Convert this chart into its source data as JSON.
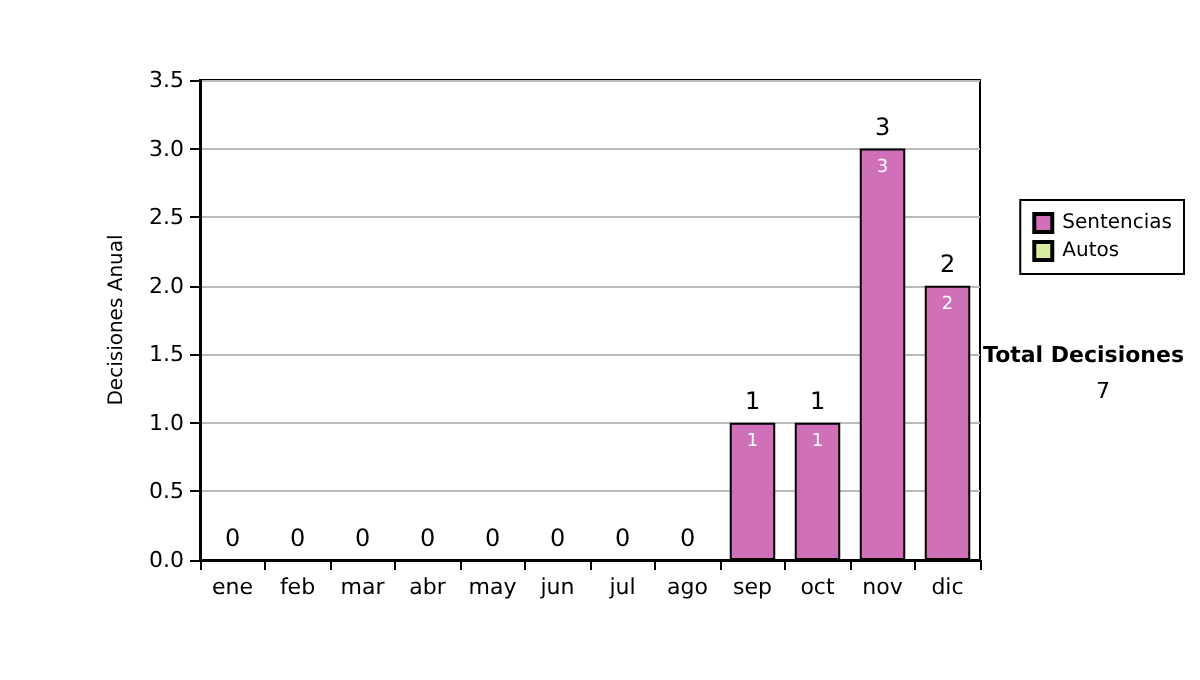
{
  "chart_data": {
    "type": "bar",
    "stacked": true,
    "ylabel": "Decisiones Anual",
    "categories": [
      "ene",
      "feb",
      "mar",
      "abr",
      "may",
      "jun",
      "jul",
      "ago",
      "sep",
      "oct",
      "nov",
      "dic"
    ],
    "series": [
      {
        "name": "Sentencias",
        "color": "#d070b8",
        "values": [
          0,
          0,
          0,
          0,
          0,
          0,
          0,
          0,
          1,
          1,
          3,
          2
        ],
        "value_labels": [
          null,
          null,
          null,
          null,
          null,
          null,
          null,
          null,
          "1",
          "1",
          "3",
          "2"
        ]
      },
      {
        "name": "Autos",
        "color": "#d8eca0",
        "values": [
          0,
          0,
          0,
          0,
          0,
          0,
          0,
          0,
          0,
          0,
          0,
          0
        ]
      }
    ],
    "totals": [
      "0",
      "0",
      "0",
      "0",
      "0",
      "0",
      "0",
      "0",
      "1",
      "1",
      "3",
      "2"
    ],
    "ylim": [
      0,
      3.5
    ],
    "yticks": [
      {
        "value": 0,
        "label": "0.0"
      },
      {
        "value": 0.5,
        "label": "0.5"
      },
      {
        "value": 1,
        "label": "1.0"
      },
      {
        "value": 1.5,
        "label": "1.5"
      },
      {
        "value": 2,
        "label": "2.0"
      },
      {
        "value": 2.5,
        "label": "2.5"
      },
      {
        "value": 3,
        "label": "3.0"
      },
      {
        "value": 3.5,
        "label": "3.5"
      }
    ],
    "grid": "y",
    "legend": "right",
    "annotations": [
      "Total Decisiones",
      "7"
    ]
  }
}
